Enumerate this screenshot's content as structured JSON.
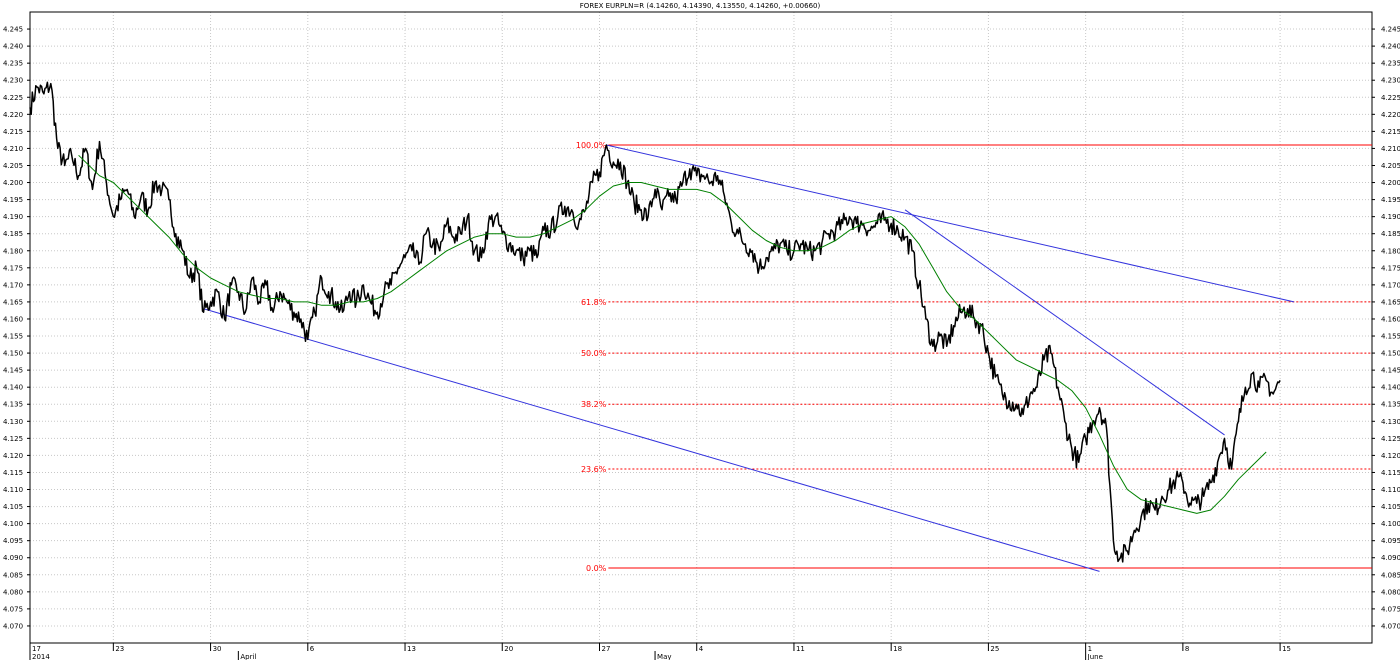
{
  "chart_data": {
    "type": "line",
    "title": "FOREX EURPLN=R (4.14260, 4.14390, 4.13550, 4.14260, +0.00660)",
    "ylim": [
      4.065,
      4.25
    ],
    "y_ticks": [
      "4.070",
      "4.075",
      "4.080",
      "4.085",
      "4.090",
      "4.095",
      "4.100",
      "4.105",
      "4.110",
      "4.115",
      "4.120",
      "4.125",
      "4.130",
      "4.135",
      "4.140",
      "4.145",
      "4.150",
      "4.155",
      "4.160",
      "4.165",
      "4.170",
      "4.175",
      "4.180",
      "4.185",
      "4.190",
      "4.195",
      "4.200",
      "4.205",
      "4.210",
      "4.215",
      "4.220",
      "4.225",
      "4.230",
      "4.235",
      "4.240",
      "4.245"
    ],
    "x_ticks": [
      {
        "day": 0,
        "label": "17"
      },
      {
        "day": 6,
        "label": "23"
      },
      {
        "day": 13,
        "label": "30"
      },
      {
        "day": 20,
        "label": "6"
      },
      {
        "day": 27,
        "label": "13"
      },
      {
        "day": 34,
        "label": "20"
      },
      {
        "day": 41,
        "label": "27"
      },
      {
        "day": 48,
        "label": "4"
      },
      {
        "day": 55,
        "label": "11"
      },
      {
        "day": 62,
        "label": "18"
      },
      {
        "day": 69,
        "label": "25"
      },
      {
        "day": 76,
        "label": "1"
      },
      {
        "day": 83,
        "label": "8"
      },
      {
        "day": 90,
        "label": "15"
      }
    ],
    "x_range_days": [
      0,
      96
    ],
    "month_labels": [
      {
        "day": 0,
        "label": "2014"
      },
      {
        "day": 15,
        "label": "April"
      },
      {
        "day": 45,
        "label": "May"
      },
      {
        "day": 76,
        "label": "June"
      }
    ],
    "grid": true,
    "colors": {
      "price": "#000000",
      "moving_average": "#008000",
      "trendline": "#3333dd",
      "fibonacci": "#ff0000",
      "grid": "#c8c8c8"
    },
    "series": [
      {
        "kind": "price",
        "points": [
          [
            0,
            4.222
          ],
          [
            0.5,
            4.228
          ],
          [
            1,
            4.226
          ],
          [
            1.5,
            4.229
          ],
          [
            2,
            4.21
          ],
          [
            2.5,
            4.205
          ],
          [
            3,
            4.208
          ],
          [
            3.5,
            4.202
          ],
          [
            4,
            4.21
          ],
          [
            4.5,
            4.198
          ],
          [
            5,
            4.212
          ],
          [
            5.5,
            4.2
          ],
          [
            6,
            4.19
          ],
          [
            6.5,
            4.195
          ],
          [
            7,
            4.198
          ],
          [
            7.5,
            4.19
          ],
          [
            8,
            4.196
          ],
          [
            8.5,
            4.192
          ],
          [
            9,
            4.2
          ],
          [
            9.5,
            4.198
          ],
          [
            10,
            4.195
          ],
          [
            10.5,
            4.185
          ],
          [
            11,
            4.18
          ],
          [
            11.5,
            4.172
          ],
          [
            12,
            4.175
          ],
          [
            12.5,
            4.162
          ],
          [
            13,
            4.165
          ],
          [
            13.5,
            4.168
          ],
          [
            14,
            4.16
          ],
          [
            14.5,
            4.17
          ],
          [
            15,
            4.168
          ],
          [
            15.5,
            4.162
          ],
          [
            16,
            4.172
          ],
          [
            16.5,
            4.165
          ],
          [
            17,
            4.17
          ],
          [
            17.5,
            4.162
          ],
          [
            18,
            4.168
          ],
          [
            18.5,
            4.165
          ],
          [
            19,
            4.162
          ],
          [
            19.5,
            4.16
          ],
          [
            20,
            4.154
          ],
          [
            20.5,
            4.162
          ],
          [
            21,
            4.172
          ],
          [
            21.5,
            4.168
          ],
          [
            22,
            4.165
          ],
          [
            22.5,
            4.162
          ],
          [
            23,
            4.168
          ],
          [
            23.5,
            4.165
          ],
          [
            24,
            4.17
          ],
          [
            24.5,
            4.165
          ],
          [
            25,
            4.162
          ],
          [
            25.5,
            4.168
          ],
          [
            26,
            4.17
          ],
          [
            26.5,
            4.175
          ],
          [
            27,
            4.178
          ],
          [
            27.5,
            4.18
          ],
          [
            28,
            4.176
          ],
          [
            28.5,
            4.185
          ],
          [
            29,
            4.182
          ],
          [
            29.5,
            4.18
          ],
          [
            30,
            4.188
          ],
          [
            30.5,
            4.184
          ],
          [
            31,
            4.185
          ],
          [
            31.5,
            4.19
          ],
          [
            32,
            4.18
          ],
          [
            32.5,
            4.178
          ],
          [
            33,
            4.188
          ],
          [
            33.5,
            4.19
          ],
          [
            34,
            4.185
          ],
          [
            34.5,
            4.182
          ],
          [
            35,
            4.18
          ],
          [
            35.5,
            4.178
          ],
          [
            36,
            4.18
          ],
          [
            36.5,
            4.178
          ],
          [
            37,
            4.186
          ],
          [
            37.5,
            4.186
          ],
          [
            38,
            4.19
          ],
          [
            38.5,
            4.193
          ],
          [
            39,
            4.192
          ],
          [
            39.5,
            4.188
          ],
          [
            40,
            4.192
          ],
          [
            40.5,
            4.2
          ],
          [
            41,
            4.203
          ],
          [
            41.5,
            4.211
          ],
          [
            42,
            4.206
          ],
          [
            42.5,
            4.206
          ],
          [
            43,
            4.2
          ],
          [
            43.5,
            4.194
          ],
          [
            44,
            4.192
          ],
          [
            44.5,
            4.19
          ],
          [
            45,
            4.198
          ],
          [
            45.5,
            4.192
          ],
          [
            46,
            4.196
          ],
          [
            46.5,
            4.195
          ],
          [
            47,
            4.2
          ],
          [
            47.5,
            4.204
          ],
          [
            48,
            4.202
          ],
          [
            48.5,
            4.202
          ],
          [
            49,
            4.2
          ],
          [
            49.5,
            4.202
          ],
          [
            50,
            4.196
          ],
          [
            50.5,
            4.188
          ],
          [
            51,
            4.185
          ],
          [
            51.5,
            4.182
          ],
          [
            52,
            4.18
          ],
          [
            52.5,
            4.175
          ],
          [
            53,
            4.178
          ],
          [
            53.5,
            4.18
          ],
          [
            54,
            4.182
          ],
          [
            54.5,
            4.18
          ],
          [
            55,
            4.18
          ],
          [
            55.5,
            4.182
          ],
          [
            56,
            4.18
          ],
          [
            56.5,
            4.18
          ],
          [
            57,
            4.182
          ],
          [
            57.5,
            4.185
          ],
          [
            58,
            4.186
          ],
          [
            58.5,
            4.188
          ],
          [
            59,
            4.19
          ],
          [
            59.5,
            4.188
          ],
          [
            60,
            4.188
          ],
          [
            60.5,
            4.186
          ],
          [
            61,
            4.188
          ],
          [
            61.5,
            4.189
          ],
          [
            62,
            4.188
          ],
          [
            62.5,
            4.186
          ],
          [
            63,
            4.184
          ],
          [
            63.5,
            4.18
          ],
          [
            64,
            4.17
          ],
          [
            64.5,
            4.16
          ],
          [
            65,
            4.152
          ],
          [
            65.5,
            4.155
          ],
          [
            66,
            4.152
          ],
          [
            66.5,
            4.158
          ],
          [
            67,
            4.162
          ],
          [
            67.5,
            4.163
          ],
          [
            68,
            4.16
          ],
          [
            68.5,
            4.158
          ],
          [
            69,
            4.15
          ],
          [
            69.5,
            4.143
          ],
          [
            70,
            4.138
          ],
          [
            70.5,
            4.136
          ],
          [
            71,
            4.135
          ],
          [
            71.5,
            4.132
          ],
          [
            72,
            4.138
          ],
          [
            72.5,
            4.14
          ],
          [
            73,
            4.148
          ],
          [
            73.5,
            4.15
          ],
          [
            74,
            4.14
          ],
          [
            74.5,
            4.13
          ],
          [
            75,
            4.122
          ],
          [
            75.5,
            4.118
          ],
          [
            76,
            4.125
          ],
          [
            76.5,
            4.13
          ],
          [
            77,
            4.134
          ],
          [
            77.5,
            4.128
          ],
          [
            78,
            4.095
          ],
          [
            78.5,
            4.09
          ],
          [
            79,
            4.092
          ],
          [
            79.5,
            4.098
          ],
          [
            80,
            4.102
          ],
          [
            80.5,
            4.106
          ],
          [
            81,
            4.104
          ],
          [
            81.5,
            4.108
          ],
          [
            82,
            4.11
          ],
          [
            82.5,
            4.113
          ],
          [
            83,
            4.112
          ],
          [
            83.5,
            4.106
          ],
          [
            84,
            4.106
          ],
          [
            84.5,
            4.108
          ],
          [
            85,
            4.112
          ],
          [
            85.5,
            4.118
          ],
          [
            86,
            4.125
          ],
          [
            86.5,
            4.116
          ],
          [
            87,
            4.13
          ],
          [
            87.5,
            4.14
          ],
          [
            88,
            4.144
          ],
          [
            88.5,
            4.14
          ],
          [
            89,
            4.142
          ],
          [
            89.5,
            4.138
          ],
          [
            90,
            4.142
          ]
        ]
      },
      {
        "kind": "moving_average",
        "points": [
          [
            3.5,
            4.208
          ],
          [
            5,
            4.202
          ],
          [
            6,
            4.2
          ],
          [
            7,
            4.196
          ],
          [
            8,
            4.192
          ],
          [
            9,
            4.188
          ],
          [
            10,
            4.184
          ],
          [
            11,
            4.179
          ],
          [
            12,
            4.175
          ],
          [
            13,
            4.172
          ],
          [
            14,
            4.17
          ],
          [
            15,
            4.168
          ],
          [
            16,
            4.167
          ],
          [
            17,
            4.166
          ],
          [
            18,
            4.166
          ],
          [
            19,
            4.165
          ],
          [
            20,
            4.165
          ],
          [
            21,
            4.164
          ],
          [
            22,
            4.164
          ],
          [
            23,
            4.165
          ],
          [
            24,
            4.165
          ],
          [
            25,
            4.166
          ],
          [
            26,
            4.168
          ],
          [
            27,
            4.171
          ],
          [
            28,
            4.174
          ],
          [
            29,
            4.177
          ],
          [
            30,
            4.18
          ],
          [
            31,
            4.182
          ],
          [
            32,
            4.184
          ],
          [
            33,
            4.185
          ],
          [
            34,
            4.185
          ],
          [
            35,
            4.184
          ],
          [
            36,
            4.184
          ],
          [
            37,
            4.185
          ],
          [
            38,
            4.187
          ],
          [
            39,
            4.189
          ],
          [
            40,
            4.192
          ],
          [
            41,
            4.196
          ],
          [
            42,
            4.199
          ],
          [
            43,
            4.2
          ],
          [
            44,
            4.2
          ],
          [
            45,
            4.199
          ],
          [
            46,
            4.198
          ],
          [
            47,
            4.198
          ],
          [
            48,
            4.198
          ],
          [
            49,
            4.197
          ],
          [
            50,
            4.194
          ],
          [
            51,
            4.19
          ],
          [
            52,
            4.186
          ],
          [
            53,
            4.183
          ],
          [
            54,
            4.181
          ],
          [
            55,
            4.18
          ],
          [
            56,
            4.18
          ],
          [
            57,
            4.181
          ],
          [
            58,
            4.183
          ],
          [
            59,
            4.186
          ],
          [
            60,
            4.188
          ],
          [
            61,
            4.189
          ],
          [
            62,
            4.19
          ],
          [
            63,
            4.187
          ],
          [
            64,
            4.182
          ],
          [
            65,
            4.175
          ],
          [
            66,
            4.168
          ],
          [
            67,
            4.163
          ],
          [
            68,
            4.16
          ],
          [
            69,
            4.156
          ],
          [
            70,
            4.152
          ],
          [
            71,
            4.148
          ],
          [
            72,
            4.146
          ],
          [
            73,
            4.144
          ],
          [
            74,
            4.142
          ],
          [
            75,
            4.139
          ],
          [
            76,
            4.134
          ],
          [
            77,
            4.126
          ],
          [
            78,
            4.117
          ],
          [
            79,
            4.11
          ],
          [
            80,
            4.107
          ],
          [
            81,
            4.106
          ],
          [
            82,
            4.105
          ],
          [
            83,
            4.104
          ],
          [
            84,
            4.103
          ],
          [
            85,
            4.104
          ],
          [
            86,
            4.108
          ],
          [
            87,
            4.113
          ],
          [
            88,
            4.117
          ],
          [
            89,
            4.121
          ]
        ]
      }
    ],
    "trendlines": [
      {
        "from": [
          12.5,
          4.163
        ],
        "to": [
          77.0,
          4.086
        ]
      },
      {
        "from": [
          41.5,
          4.211
        ],
        "to": [
          91.0,
          4.165
        ]
      },
      {
        "from": [
          63.0,
          4.192
        ],
        "to": [
          86.0,
          4.126
        ]
      }
    ],
    "fibonacci": {
      "x_start": 42,
      "levels": [
        {
          "label": "100.0%",
          "value": 4.211,
          "style": "solid"
        },
        {
          "label": "61.8%",
          "value": 4.165,
          "style": "dashed"
        },
        {
          "label": "50.0%",
          "value": 4.15,
          "style": "dashed"
        },
        {
          "label": "38.2%",
          "value": 4.135,
          "style": "dashed"
        },
        {
          "label": "23.6%",
          "value": 4.116,
          "style": "dashed"
        },
        {
          "label": "0.0%",
          "value": 4.087,
          "style": "solid"
        }
      ]
    }
  }
}
